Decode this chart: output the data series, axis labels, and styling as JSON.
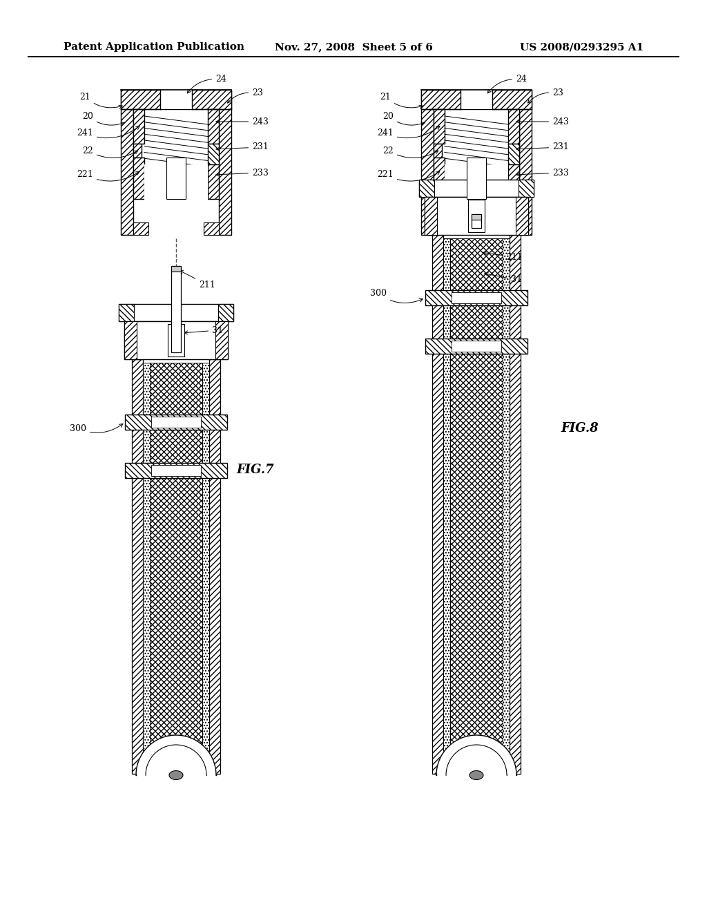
{
  "background_color": "#ffffff",
  "header_left": "Patent Application Publication",
  "header_center": "Nov. 27, 2008  Sheet 5 of 6",
  "header_right": "US 2008/0293295 A1",
  "fig7_label": "FIG.7",
  "fig8_label": "FIG.8",
  "line_color": "#000000",
  "header_fontsize": 11,
  "figlabel_fontsize": 13,
  "annot_fontsize": 9
}
